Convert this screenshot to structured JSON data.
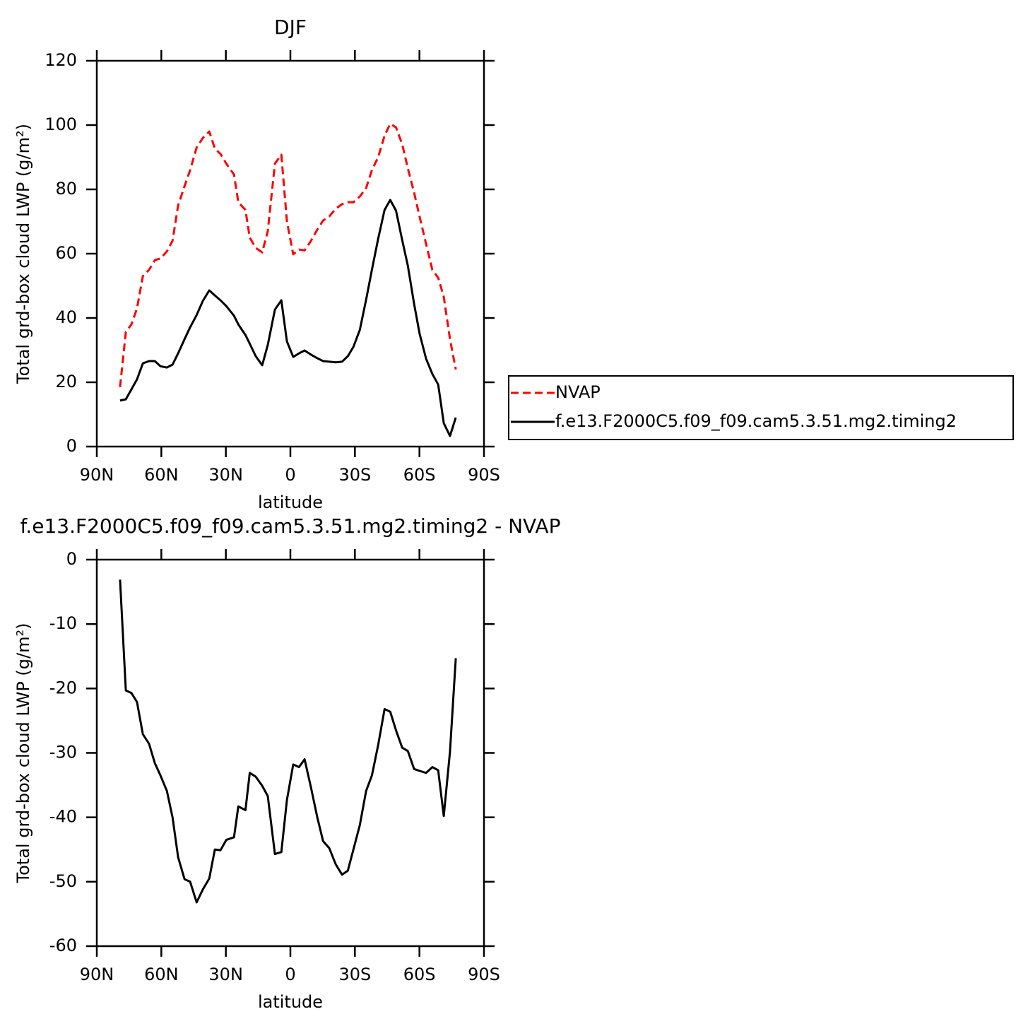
{
  "chart_data": [
    {
      "type": "line",
      "title": "DJF",
      "xlabel": "latitude",
      "ylabel": "Total grd-box cloud LWP (g/m²)",
      "x": [
        79.2,
        76.5,
        73.9,
        71.3,
        68.6,
        65.7,
        63.0,
        60.4,
        57.4,
        54.8,
        52.2,
        49.2,
        46.6,
        43.6,
        40.7,
        37.7,
        35.1,
        32.5,
        29.8,
        26.2,
        24.2,
        20.9,
        18.9,
        16.1,
        13.1,
        10.5,
        7.2,
        4.2,
        1.6,
        -1.3,
        -4.0,
        -6.6,
        -9.6,
        -12.5,
        -15.2,
        -18.1,
        -21.1,
        -24.0,
        -26.7,
        -29.3,
        -32.3,
        -35.2,
        -37.9,
        -40.8,
        -43.8,
        -46.4,
        -49.1,
        -52.0,
        -54.6,
        -57.5,
        -60.1,
        -63.1,
        -66.0,
        -68.7,
        -71.3,
        -74.2,
        -76.9
      ],
      "xlim": [
        90,
        -90
      ],
      "xticks": [
        {
          "value": 90,
          "label": "90N"
        },
        {
          "value": 60,
          "label": "60N"
        },
        {
          "value": 30,
          "label": "30N"
        },
        0,
        {
          "value": -30,
          "label": "30S"
        },
        {
          "value": -60,
          "label": "60S"
        },
        {
          "value": -90,
          "label": "90S"
        }
      ],
      "ylim": [
        0,
        120
      ],
      "yticks": [
        0,
        20,
        40,
        60,
        80,
        100,
        120
      ],
      "legend": "outside-right",
      "series": [
        {
          "name": "NVAP",
          "color": "#ff0000",
          "dash": true,
          "values": [
            18.5,
            35.6,
            38,
            43,
            53,
            55,
            58,
            58.5,
            60.7,
            64,
            75,
            81,
            86,
            93,
            96,
            98,
            92.7,
            91,
            88,
            84.6,
            76,
            73.6,
            65,
            61.8,
            60.4,
            67,
            88,
            90.8,
            70,
            59.8,
            61.3,
            61,
            64,
            67.5,
            70.3,
            71.6,
            74,
            75.4,
            76,
            76,
            77.8,
            80.4,
            86,
            90,
            96.7,
            100.4,
            99.3,
            94,
            86.6,
            79,
            71.4,
            63,
            55,
            52.5,
            46.6,
            33.4,
            24
          ]
        },
        {
          "name": "f.e13.F2000C5.f09_f09.cam5.3.51.mg2.timing2",
          "color": "#000000",
          "dash": false,
          "values": [
            14.3,
            14.7,
            17.8,
            20.9,
            25.9,
            26.6,
            26.6,
            25,
            24.6,
            25.5,
            29,
            33.4,
            37.1,
            40.9,
            45.3,
            48.6,
            47,
            45.5,
            43.7,
            40.7,
            38,
            34.7,
            32,
            28.1,
            25.3,
            31.6,
            42.6,
            45.5,
            32.7,
            27.9,
            29,
            29.9,
            28.6,
            27.5,
            26.6,
            26.4,
            26.2,
            26.4,
            28.1,
            31,
            36.3,
            45.7,
            55,
            64.6,
            73.6,
            76.7,
            73.4,
            64.2,
            56.3,
            44.4,
            35,
            27.3,
            22.6,
            19.3,
            7.3,
            3.3,
            9
          ]
        }
      ]
    },
    {
      "type": "line",
      "title": "f.e13.F2000C5.f09_f09.cam5.3.51.mg2.timing2 - NVAP",
      "xlabel": "latitude",
      "ylabel": "Total grd-box cloud LWP (g/m²)",
      "x": [
        79.2,
        76.5,
        73.9,
        71.3,
        68.6,
        65.7,
        63.0,
        60.4,
        57.4,
        54.8,
        52.2,
        49.2,
        46.6,
        43.6,
        40.7,
        37.7,
        35.1,
        32.5,
        29.8,
        26.2,
        24.2,
        20.9,
        18.9,
        16.1,
        13.1,
        10.5,
        7.2,
        4.2,
        1.6,
        -1.3,
        -4.0,
        -6.6,
        -9.6,
        -12.5,
        -15.2,
        -18.1,
        -21.1,
        -24.0,
        -26.7,
        -29.3,
        -32.3,
        -35.2,
        -37.9,
        -40.8,
        -43.8,
        -46.4,
        -49.1,
        -52.0,
        -54.6,
        -57.5,
        -60.1,
        -63.1,
        -66.0,
        -68.7,
        -71.3,
        -74.2,
        -76.9
      ],
      "xlim": [
        90,
        -90
      ],
      "xticks": [
        {
          "value": 90,
          "label": "90N"
        },
        {
          "value": 60,
          "label": "60N"
        },
        {
          "value": 30,
          "label": "30N"
        },
        0,
        {
          "value": -30,
          "label": "30S"
        },
        {
          "value": -60,
          "label": "60S"
        },
        {
          "value": -90,
          "label": "90S"
        }
      ],
      "ylim": [
        -60,
        0
      ],
      "yticks": [
        -60,
        -50,
        -40,
        -30,
        -20,
        -10,
        0
      ],
      "series": [
        {
          "color": "#000000",
          "dash": false,
          "values": [
            -3.1,
            -20.3,
            -20.7,
            -22.1,
            -27.1,
            -28.6,
            -31.6,
            -33.5,
            -35.9,
            -40,
            -46.2,
            -49.6,
            -50,
            -53.2,
            -51.2,
            -49.5,
            -45,
            -45.1,
            -43.5,
            -43.1,
            -38.3,
            -38.9,
            -33.1,
            -33.7,
            -35.1,
            -36.7,
            -45.7,
            -45.4,
            -37.3,
            -31.8,
            -32.2,
            -31,
            -35.4,
            -40,
            -43.7,
            -44.8,
            -47.3,
            -48.9,
            -48.3,
            -45,
            -41.2,
            -35.9,
            -33.5,
            -28.8,
            -23.2,
            -23.6,
            -26.5,
            -29.2,
            -29.7,
            -32.5,
            -32.8,
            -33.1,
            -32.2,
            -32.7,
            -39.8,
            -29.8,
            -15.3
          ]
        }
      ]
    }
  ]
}
